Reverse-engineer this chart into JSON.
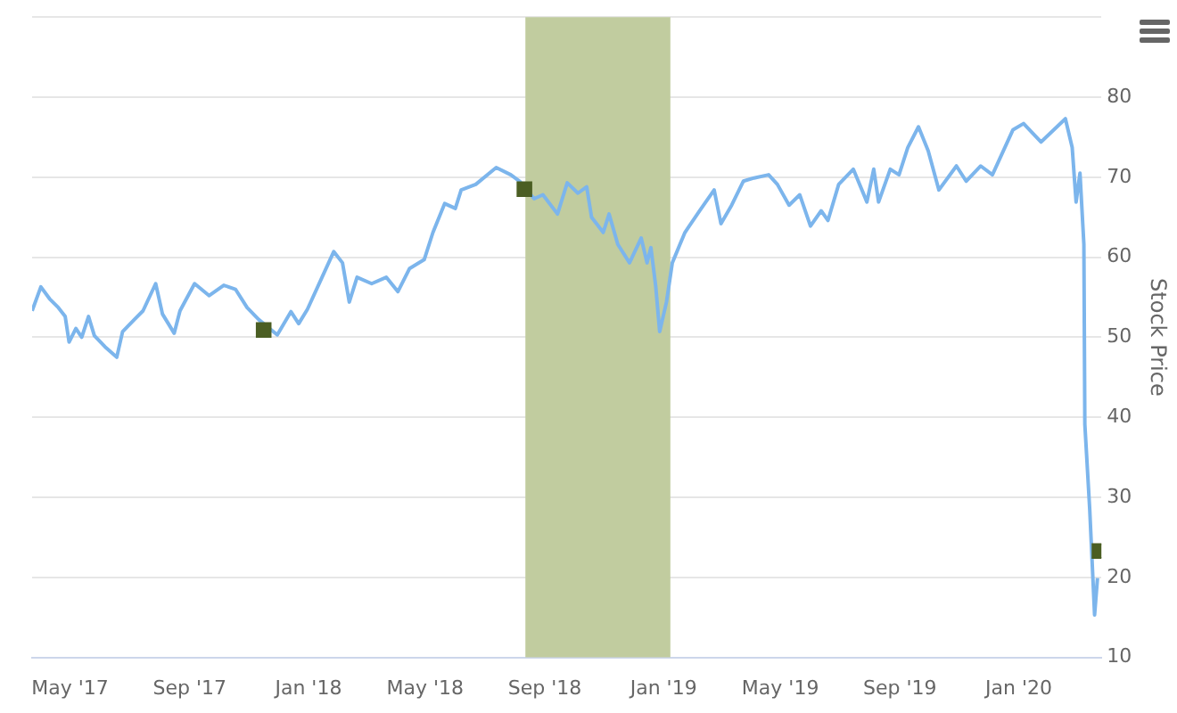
{
  "chart_data": {
    "type": "line",
    "y2label": "Stock Price",
    "xlim": [
      "2017-03-23",
      "2020-03-26"
    ],
    "xticks": [
      {
        "value": "2017-05-01",
        "label": "May '17"
      },
      {
        "value": "2017-09-01",
        "label": "Sep '17"
      },
      {
        "value": "2018-01-01",
        "label": "Jan '18"
      },
      {
        "value": "2018-05-01",
        "label": "May '18"
      },
      {
        "value": "2018-09-01",
        "label": "Sep '18"
      },
      {
        "value": "2019-01-01",
        "label": "Jan '19"
      },
      {
        "value": "2019-05-01",
        "label": "May '19"
      },
      {
        "value": "2019-09-01",
        "label": "Sep '19"
      },
      {
        "value": "2020-01-01",
        "label": "Jan '20"
      }
    ],
    "y2lim": [
      10,
      90
    ],
    "y2ticks": [
      10,
      20,
      30,
      40,
      50,
      60,
      70,
      80,
      {
        "value": 90,
        "label": null
      }
    ],
    "grid": "y",
    "legend": false,
    "bands": [
      {
        "axis": "x",
        "from": "2018-08-12",
        "to": "2019-01-08",
        "color": "#c1cc9f"
      }
    ],
    "series": [
      {
        "axis": "y2",
        "color": "#7cb5ec",
        "marker": "none",
        "x": [
          "2017-03-23",
          "2017-04-01",
          "2017-04-10",
          "2017-04-19",
          "2017-04-26",
          "2017-04-30",
          "2017-05-07",
          "2017-05-13",
          "2017-05-20",
          "2017-05-26",
          "2017-06-06",
          "2017-06-18",
          "2017-06-24",
          "2017-07-06",
          "2017-07-15",
          "2017-07-28",
          "2017-08-04",
          "2017-08-16",
          "2017-08-22",
          "2017-09-06",
          "2017-09-21",
          "2017-10-06",
          "2017-10-18",
          "2017-10-30",
          "2017-11-11",
          "2017-11-30",
          "2017-12-14",
          "2017-12-22",
          "2017-12-31",
          "2018-01-15",
          "2018-01-27",
          "2018-02-05",
          "2018-02-12",
          "2018-02-20",
          "2018-03-07",
          "2018-03-22",
          "2018-04-03",
          "2018-04-15",
          "2018-04-30",
          "2018-05-09",
          "2018-05-21",
          "2018-06-01",
          "2018-06-07",
          "2018-06-22",
          "2018-07-13",
          "2018-07-28",
          "2018-08-06",
          "2018-08-21",
          "2018-08-30",
          "2018-09-14",
          "2018-09-24",
          "2018-10-05",
          "2018-10-14",
          "2018-10-19",
          "2018-10-31",
          "2018-11-06",
          "2018-11-15",
          "2018-11-27",
          "2018-12-09",
          "2018-12-15",
          "2018-12-19",
          "2018-12-24",
          "2018-12-28",
          "2019-01-04",
          "2019-01-10",
          "2019-01-23",
          "2019-02-07",
          "2019-02-22",
          "2019-03-01",
          "2019-03-12",
          "2019-03-24",
          "2019-04-04",
          "2019-04-19",
          "2019-04-28",
          "2019-05-10",
          "2019-05-21",
          "2019-06-01",
          "2019-06-12",
          "2019-06-19",
          "2019-06-30",
          "2019-07-15",
          "2019-07-29",
          "2019-08-05",
          "2019-08-10",
          "2019-08-22",
          "2019-08-31",
          "2019-09-09",
          "2019-09-20",
          "2019-09-30",
          "2019-10-11",
          "2019-10-29",
          "2019-11-08",
          "2019-11-23",
          "2019-12-05",
          "2019-12-26",
          "2020-01-06",
          "2020-01-24",
          "2020-02-18",
          "2020-02-25",
          "2020-02-29",
          "2020-03-04",
          "2020-03-08",
          "2020-03-09",
          "2020-03-14",
          "2020-03-19",
          "2020-03-22"
        ],
        "values": [
          53.3,
          56.3,
          54.8,
          53.7,
          52.6,
          49.4,
          51.1,
          50.0,
          52.6,
          50.2,
          48.8,
          47.5,
          50.7,
          52.2,
          53.3,
          56.7,
          52.9,
          50.5,
          53.3,
          56.7,
          55.2,
          56.5,
          56.0,
          53.7,
          52.2,
          50.3,
          53.2,
          51.7,
          53.5,
          57.5,
          60.7,
          59.3,
          54.4,
          57.5,
          56.7,
          57.5,
          55.7,
          58.6,
          59.7,
          63.1,
          66.7,
          66.1,
          68.4,
          69.1,
          71.2,
          70.3,
          69.5,
          67.3,
          67.8,
          65.4,
          69.3,
          68.0,
          68.8,
          65.0,
          63.1,
          65.4,
          61.6,
          59.3,
          62.4,
          59.3,
          61.2,
          56.3,
          50.7,
          54.4,
          59.3,
          63.1,
          65.8,
          68.4,
          64.2,
          66.5,
          69.5,
          69.9,
          70.3,
          69.1,
          66.5,
          67.8,
          63.9,
          65.8,
          64.6,
          69.1,
          71.0,
          66.9,
          71.0,
          66.9,
          71.0,
          70.3,
          73.7,
          76.3,
          73.3,
          68.4,
          71.4,
          69.5,
          71.4,
          70.3,
          75.9,
          76.7,
          74.4,
          77.3,
          73.7,
          66.9,
          70.5,
          61.6,
          39.1,
          28.5,
          15.3,
          19.9
        ]
      },
      {
        "type": "scatter",
        "axis": "y2",
        "color": "#4b5e23",
        "marker": "square",
        "x": [
          "2017-11-16",
          "2018-08-11",
          "2020-03-24"
        ],
        "values": [
          50.9,
          68.5,
          23.3
        ]
      }
    ]
  }
}
